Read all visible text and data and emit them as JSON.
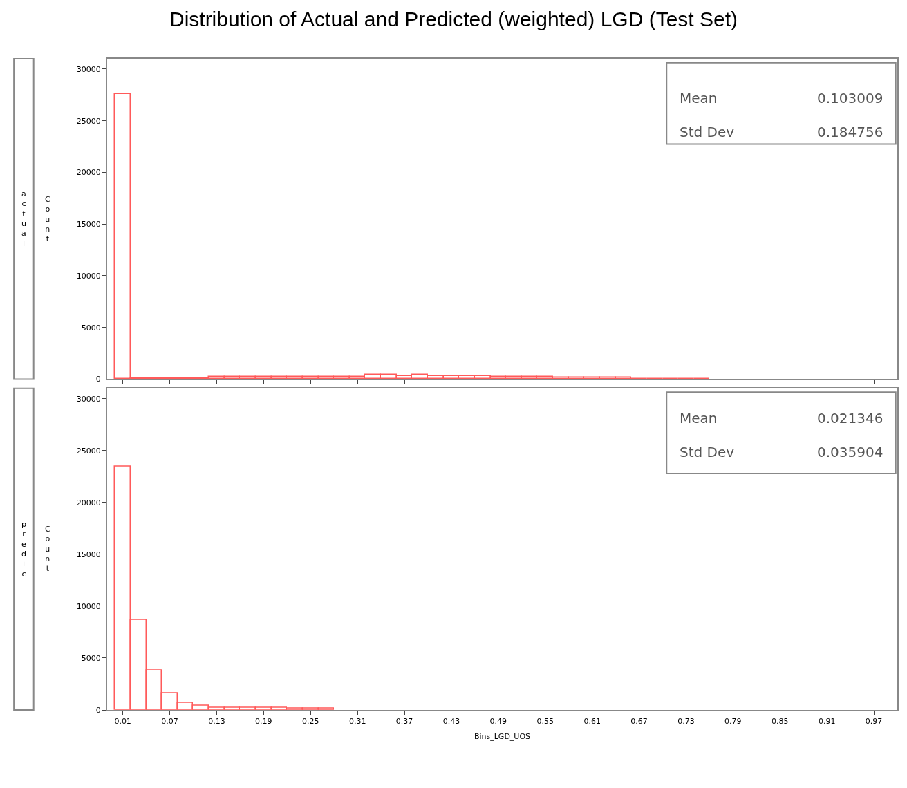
{
  "chart_data": [
    {
      "type": "histogram",
      "title": "Distribution of Actual and Predicted (weighted) LGD (Test Set)",
      "ylabel": "Count",
      "color": "#ff5a5a",
      "bins": [
        0,
        0.02,
        0.04,
        0.06,
        0.08,
        0.1,
        0.12,
        0.14,
        0.16,
        0.18,
        0.2,
        0.22,
        0.24,
        0.26,
        0.28,
        0.3,
        0.32,
        0.34,
        0.36,
        0.38,
        0.4,
        0.42,
        0.44,
        0.46,
        0.48,
        0.5,
        0.52,
        0.54,
        0.56,
        0.58,
        0.6,
        0.62,
        0.64,
        0.66,
        0.68,
        0.7,
        0.72,
        0.74,
        0.76
      ],
      "values": [
        27600,
        100,
        100,
        100,
        100,
        100,
        200,
        200,
        200,
        200,
        250,
        250,
        250,
        250,
        250,
        250,
        400,
        400,
        300,
        400,
        300,
        300,
        300,
        300,
        250,
        250,
        200,
        200,
        150,
        150,
        150,
        150,
        150,
        50,
        50,
        50,
        50,
        50
      ],
      "xlim": [
        -0.01,
        1.0
      ],
      "xticks": [
        0.01,
        0.07,
        0.13,
        0.19,
        0.25,
        0.31,
        0.37,
        0.43,
        0.49,
        0.55,
        0.61,
        0.67,
        0.73,
        0.79,
        0.85,
        0.91,
        0.97
      ],
      "ylim": [
        0,
        31000
      ],
      "yticks": [
        0,
        5000,
        10000,
        15000,
        20000,
        25000,
        30000
      ],
      "tick_labels": "y",
      "annotations": [
        "actual",
        "Mean",
        "0.103009",
        "Std Dev",
        "0.184756"
      ]
    },
    {
      "type": "histogram",
      "ylabel": "Count",
      "xlabel": "Bins_LGD_UOS",
      "color": "#ff5a5a",
      "bins": [
        0,
        0.02,
        0.04,
        0.06,
        0.08,
        0.1,
        0.12,
        0.14,
        0.16,
        0.18,
        0.2,
        0.22,
        0.24,
        0.26,
        0.28
      ],
      "values": [
        23500,
        8700,
        3850,
        1600,
        700,
        450,
        250,
        250,
        200,
        200,
        200,
        150,
        150,
        150
      ],
      "xlim": [
        -0.01,
        1.0
      ],
      "xticks": [
        0.01,
        0.07,
        0.13,
        0.19,
        0.25,
        0.31,
        0.37,
        0.43,
        0.49,
        0.55,
        0.61,
        0.67,
        0.73,
        0.79,
        0.85,
        0.91,
        0.97
      ],
      "ylim": [
        0,
        31000
      ],
      "yticks": [
        0,
        5000,
        10000,
        15000,
        20000,
        25000,
        30000
      ],
      "annotations": [
        "predic",
        "Mean",
        "0.021346",
        "Std Dev",
        "0.035904"
      ]
    }
  ]
}
